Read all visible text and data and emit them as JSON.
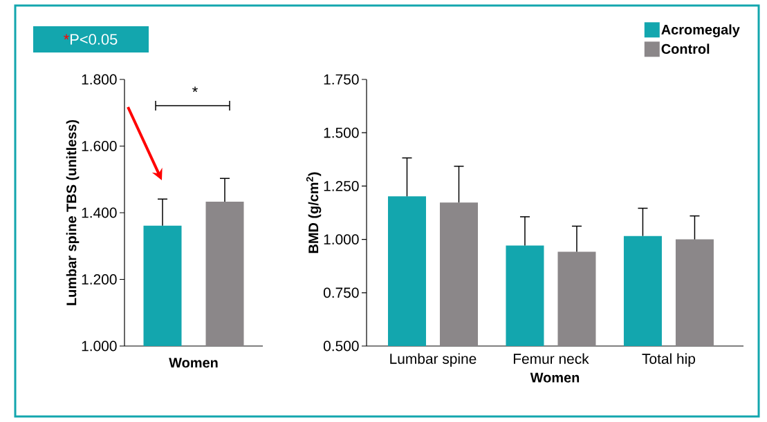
{
  "chart_data": [
    {
      "type": "bar",
      "categories": [
        null
      ],
      "xlabel": "Women",
      "ylabel": "Lumbar spine TBS (unitless)",
      "ylim": [
        1.0,
        1.8
      ],
      "yticks": [
        {
          "value": 1.0,
          "label": "1.000"
        },
        {
          "value": 1.2,
          "label": "1.200"
        },
        {
          "value": 1.4,
          "label": "1.400"
        },
        {
          "value": 1.6,
          "label": "1.600"
        },
        {
          "value": 1.8,
          "label": "1.800"
        }
      ],
      "series": [
        {
          "color": "#13a6ae",
          "values": [
            1.361
          ],
          "errors": [
            0.08
          ]
        },
        {
          "color": "#8b8789",
          "values": [
            1.433
          ],
          "errors": [
            0.07
          ]
        }
      ],
      "annotations": [
        "*",
        "P<0.05",
        "*"
      ]
    },
    {
      "type": "bar",
      "categories": [
        "Lumbar spine",
        "Femur neck",
        "Total hip"
      ],
      "xlabel": "Women",
      "ylabel": "BMD (g/cm$^{2}$)",
      "ylim": [
        0.5,
        1.75
      ],
      "yticks": [
        {
          "value": 0.5,
          "label": "0.500"
        },
        {
          "value": 0.75,
          "label": "0.750"
        },
        {
          "value": 1.0,
          "label": "1.000"
        },
        {
          "value": 1.25,
          "label": "1.250"
        },
        {
          "value": 1.5,
          "label": "1.500"
        },
        {
          "value": 1.75,
          "label": "1.750"
        }
      ],
      "legend": "top right",
      "series": [
        {
          "name": "Acromegaly",
          "color": "#13a6ae",
          "values": [
            1.202,
            0.971,
            1.016
          ],
          "errors": [
            0.18,
            0.135,
            0.13
          ]
        },
        {
          "name": "Control",
          "color": "#8b8789",
          "values": [
            1.173,
            0.942,
            1.0
          ],
          "errors": [
            0.17,
            0.12,
            0.11
          ]
        }
      ]
    }
  ]
}
